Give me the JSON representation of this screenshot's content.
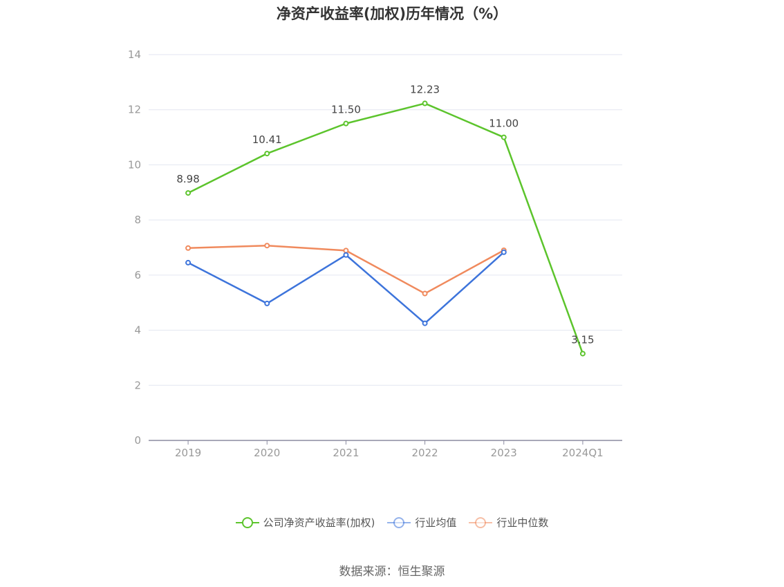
{
  "chart_data": {
    "type": "line",
    "title": "净资产收益率(加权)历年情况（%）",
    "categories": [
      "2019",
      "2020",
      "2021",
      "2022",
      "2023",
      "2024Q1"
    ],
    "ylim": [
      0,
      14
    ],
    "yticks": [
      0,
      2,
      4,
      6,
      8,
      10,
      12,
      14
    ],
    "grid": true,
    "legend_position": "bottom",
    "series": [
      {
        "name": "公司净资产收益率(加权)",
        "color": "#5cc42c",
        "values": [
          8.98,
          10.41,
          11.5,
          12.23,
          11.0,
          3.15
        ],
        "labels": [
          "8.98",
          "10.41",
          "11.50",
          "12.23",
          "11.00",
          "3.15"
        ]
      },
      {
        "name": "行业均值",
        "color": "#3d74db",
        "values": [
          6.45,
          4.97,
          6.73,
          4.25,
          6.83,
          null
        ]
      },
      {
        "name": "行业中位数",
        "color": "#f08a5d",
        "values": [
          6.98,
          7.07,
          6.89,
          5.33,
          6.9,
          null
        ]
      }
    ]
  },
  "legend": {
    "items": [
      {
        "label": "公司净资产收益率(加权)",
        "color": "#5cc42c",
        "faded": false
      },
      {
        "label": "行业均值",
        "color": "#3d74db",
        "faded": true
      },
      {
        "label": "行业中位数",
        "color": "#f08a5d",
        "faded": true
      }
    ]
  },
  "source": "数据来源：恒生聚源"
}
